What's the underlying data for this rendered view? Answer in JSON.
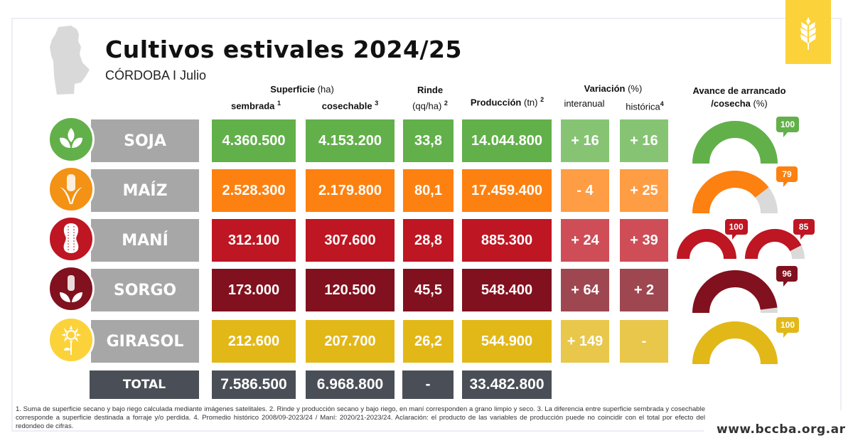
{
  "header": {
    "title": "Cultivos estivales 2024/25",
    "subtitle": "CÓRDOBA I Julio"
  },
  "columns": {
    "superficie": {
      "bold": "Superficie",
      "unit": " (ha)"
    },
    "sembrada": {
      "label": "sembrada",
      "note": "1"
    },
    "cosechable": {
      "label": "cosechable",
      "note": "3"
    },
    "rinde": {
      "bold": "Rinde",
      "unit": "(qq/ha)",
      "note": "2"
    },
    "produccion": {
      "bold": "Producción",
      "unit": " (tn)",
      "note": "2"
    },
    "variacion": {
      "bold": "Variación",
      "unit": " (%)"
    },
    "interanual": {
      "label": "interanual"
    },
    "historica": {
      "label": "histórica",
      "note": "4"
    },
    "avance": {
      "bold1": "Avance de arrancado",
      "bold2": "/cosecha",
      "unit": " (%)"
    }
  },
  "crops": [
    {
      "name": "SOJA",
      "icon": "soybean-plant-icon",
      "color": "#62b04a",
      "var_color": "#86c474",
      "sembrada": "4.360.500",
      "cosechable": "4.153.200",
      "rinde": "33,8",
      "produccion": "14.044.800",
      "interanual": "+ 16",
      "historica": "+ 16",
      "avance": [
        {
          "value": 100,
          "label": "100"
        }
      ]
    },
    {
      "name": "MAÍZ",
      "icon": "corn-cob-icon",
      "color": "#fd8110",
      "var_color": "#fe9d44",
      "sembrada": "2.528.300",
      "cosechable": "2.179.800",
      "rinde": "80,1",
      "produccion": "17.459.400",
      "interanual": "- 4",
      "historica": "+ 25",
      "avance": [
        {
          "value": 79,
          "label": "79"
        }
      ]
    },
    {
      "name": "MANÍ",
      "icon": "peanut-icon",
      "color": "#be1622",
      "var_color": "#ce4d57",
      "sembrada": "312.100",
      "cosechable": "307.600",
      "rinde": "28,8",
      "produccion": "885.300",
      "interanual": "+ 24",
      "historica": "+ 39",
      "avance": [
        {
          "value": 100,
          "label": "100"
        },
        {
          "value": 85,
          "label": "85"
        }
      ]
    },
    {
      "name": "SORGO",
      "icon": "sorghum-plant-icon",
      "color": "#81111e",
      "var_color": "#9e4751",
      "sembrada": "173.000",
      "cosechable": "120.500",
      "rinde": "45,5",
      "produccion": "548.400",
      "interanual": "+ 64",
      "historica": "+ 2",
      "avance": [
        {
          "value": 96,
          "label": "96"
        }
      ]
    },
    {
      "name": "GIRASOL",
      "icon": "sunflower-icon",
      "color": "#e2b818",
      "var_color": "#e8c74a",
      "sembrada": "212.600",
      "cosechable": "207.700",
      "rinde": "26,2",
      "produccion": "544.900",
      "interanual": "+ 149",
      "historica": "-",
      "avance": [
        {
          "value": 100,
          "label": "100"
        }
      ]
    }
  ],
  "total": {
    "label": "TOTAL",
    "sembrada": "7.586.500",
    "cosechable": "6.968.800",
    "rinde": "-",
    "produccion": "33.482.800"
  },
  "colors": {
    "icon_soja": "#62b04a",
    "icon_maiz": "#f39214",
    "icon_mani": "#be1622",
    "icon_sorgo": "#81111e",
    "icon_girasol": "#fcd23a",
    "gauge_empty": "#dadada",
    "label_bg": "#a7a7a7",
    "total_bg": "#4a4f57",
    "badge": "#fcd23a"
  },
  "footnote": "1. Suma de superficie secano y bajo riego calculada mediante imágenes satelitales. 2. Rinde y producción secano y bajo riego, en maní corresponden a grano limpio y seco. 3. La diferencia entre superficie sembrada y cosechable corresponde a superficie destinada a forraje y/o perdida. 4. Promedio histórico 2008/09-2023/24 / Maní: 2020/21-2023/24. Aclaración: el producto de las variables de producción puede no coincidir con el total por efecto del redondeo de cifras.",
  "website": "www.bccba.org.ar"
}
